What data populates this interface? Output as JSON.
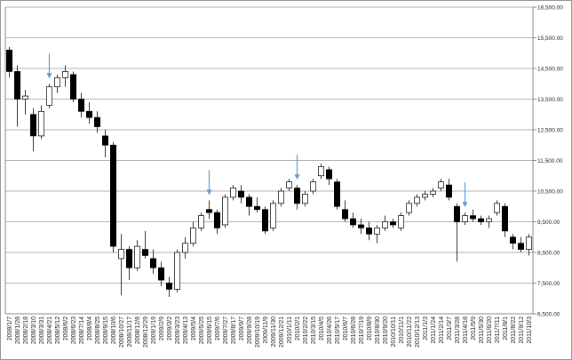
{
  "chart_data": {
    "type": "candlestick",
    "categories": [
      "2008/1/7",
      "2008/1/28",
      "2008/2/18",
      "2008/3/10",
      "2008/3/31",
      "2008/4/21",
      "2008/5/12",
      "2008/6/2",
      "2008/6/23",
      "2008/7/14",
      "2008/8/4",
      "2008/8/25",
      "2008/9/15",
      "2008/10/6",
      "2008/10/27",
      "2008/11/17",
      "2008/12/8",
      "2008/12/29",
      "2009/1/19",
      "2009/2/9",
      "2009/3/2",
      "2009/3/23",
      "2009/4/13",
      "2009/5/4",
      "2009/5/25",
      "2009/6/15",
      "2009/7/6",
      "2009/7/27",
      "2009/8/17",
      "2009/9/7",
      "2009/9/28",
      "2009/10/19",
      "2009/11/9",
      "2009/11/30",
      "2009/12/21",
      "2010/1/11",
      "2010/2/1",
      "2010/2/22",
      "2010/3/15",
      "2010/4/5",
      "2010/4/26",
      "2010/5/17",
      "2010/6/7",
      "2010/6/28",
      "2010/7/19",
      "2010/8/9",
      "2010/8/30",
      "2010/9/20",
      "2010/10/11",
      "2010/11/1",
      "2010/11/22",
      "2010/12/13",
      "2011/1/3",
      "2011/1/24",
      "2011/2/14",
      "2011/3/7",
      "2011/3/28",
      "2011/4/18",
      "2011/5/9",
      "2011/5/30",
      "2011/6/20",
      "2011/7/11",
      "2011/8/1",
      "2011/8/22",
      "2011/9/12",
      "2011/10/3"
    ],
    "open": [
      15100,
      14400,
      13500,
      13000,
      12300,
      13300,
      13900,
      14200,
      14300,
      13500,
      13100,
      12900,
      12300,
      12000,
      8300,
      8600,
      8000,
      8600,
      8300,
      8000,
      7500,
      7300,
      8500,
      8800,
      9300,
      9900,
      9800,
      9400,
      10300,
      10500,
      10300,
      10000,
      9900,
      9300,
      10100,
      10600,
      10600,
      10100,
      10500,
      11000,
      11200,
      10800,
      9900,
      9600,
      9400,
      9300,
      9100,
      9300,
      9500,
      9300,
      9800,
      10100,
      10300,
      10400,
      10600,
      10700,
      10000,
      9500,
      9700,
      9600,
      9500,
      9800,
      10000,
      9000,
      8800,
      8600
    ],
    "high": [
      15200,
      14600,
      13800,
      13200,
      13300,
      14000,
      14300,
      14600,
      14400,
      13700,
      13400,
      13100,
      12500,
      12100,
      9100,
      8700,
      8900,
      9200,
      8600,
      8200,
      7700,
      8600,
      9000,
      9500,
      9800,
      10200,
      9900,
      10400,
      10700,
      10700,
      10400,
      10300,
      10000,
      10200,
      10600,
      10900,
      10700,
      10500,
      10900,
      11400,
      11300,
      10900,
      10200,
      9800,
      9600,
      9500,
      9400,
      9700,
      9600,
      9800,
      10200,
      10400,
      10500,
      10600,
      10900,
      10900,
      10100,
      9800,
      9900,
      9700,
      9700,
      10200,
      10100,
      9100,
      9000,
      9100
    ],
    "low": [
      14200,
      12600,
      13000,
      11800,
      12200,
      13200,
      13700,
      13900,
      13400,
      12900,
      12700,
      12400,
      11600,
      8500,
      7100,
      7600,
      7900,
      8300,
      7800,
      7400,
      7050,
      7200,
      8300,
      8700,
      9200,
      9600,
      9100,
      9300,
      10200,
      10100,
      9700,
      9800,
      9100,
      9200,
      10000,
      10500,
      9900,
      10000,
      10400,
      10900,
      10700,
      9900,
      9500,
      9300,
      9100,
      8900,
      8800,
      9200,
      9300,
      9200,
      9700,
      10000,
      10200,
      10300,
      10500,
      10200,
      8200,
      9400,
      9500,
      9400,
      9300,
      9700,
      9000,
      8600,
      8500,
      8400
    ],
    "close": [
      14400,
      13500,
      13600,
      12300,
      13100,
      13900,
      14200,
      14400,
      13500,
      13100,
      12900,
      12600,
      12000,
      8700,
      8600,
      8000,
      8700,
      8400,
      8000,
      7600,
      7300,
      8500,
      8800,
      9300,
      9700,
      9800,
      9300,
      10300,
      10600,
      10300,
      10000,
      9900,
      9200,
      10100,
      10500,
      10800,
      10100,
      10400,
      10800,
      11300,
      10900,
      10000,
      9600,
      9400,
      9300,
      9100,
      9300,
      9500,
      9400,
      9700,
      10100,
      10300,
      10400,
      10500,
      10800,
      10300,
      9500,
      9700,
      9600,
      9500,
      9600,
      10100,
      9200,
      8800,
      8600,
      9000
    ],
    "up_color": "#ffffff",
    "down_color": "#000000",
    "ylim": [
      6500,
      16500
    ],
    "yticks": [
      {
        "value": 6500,
        "label": "6,500.00"
      },
      {
        "value": 7500,
        "label": "7,500.00"
      },
      {
        "value": 8500,
        "label": "8,500.00"
      },
      {
        "value": 9500,
        "label": "9,500.00"
      },
      {
        "value": 10500,
        "label": "10,500.00"
      },
      {
        "value": 11500,
        "label": "11,500.00"
      },
      {
        "value": 12500,
        "label": "12,500.00"
      },
      {
        "value": 13500,
        "label": "13,500.00"
      },
      {
        "value": 14500,
        "label": "14,500.00"
      },
      {
        "value": 15500,
        "label": "15,500.00"
      },
      {
        "value": 16500,
        "label": "16,500.00"
      }
    ],
    "grid": true
  }
}
